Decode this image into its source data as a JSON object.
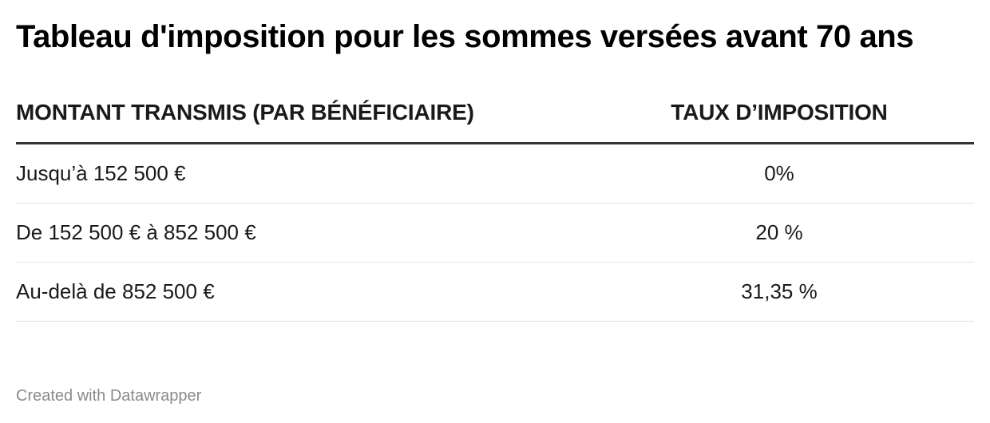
{
  "chart_data": {
    "type": "table",
    "title": "Tableau d'imposition pour les sommes versées avant 70 ans",
    "columns": [
      "MONTANT TRANSMIS (PAR BÉNÉFICIAIRE)",
      "TAUX D’IMPOSITION"
    ],
    "rows": [
      [
        "Jusqu’à 152 500 €",
        "0%"
      ],
      [
        "De 152 500 € à 852 500 €",
        "20 %"
      ],
      [
        "Au-delà de 852 500 €",
        "31,35 %"
      ]
    ]
  },
  "footer": {
    "credit": "Created with Datawrapper"
  },
  "colors": {
    "text": "#1a1a1a",
    "header_rule": "#333333",
    "row_rule": "#e2e2e2",
    "footer_text": "#8a8a8a"
  }
}
